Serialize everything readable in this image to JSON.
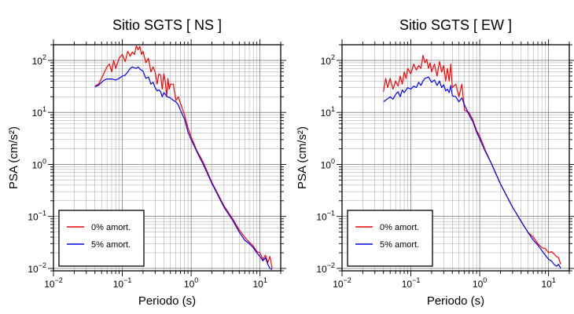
{
  "chart_data": [
    {
      "type": "line",
      "title": "Sitio SGTS [ NS ]",
      "xlabel": "Periodo (s)",
      "ylabel": "PSA (cm/s²)",
      "xscale": "log",
      "yscale": "log",
      "xlim": [
        0.01,
        20
      ],
      "ylim": [
        0.009,
        200
      ],
      "xtick_labels": [
        {
          "value": 0.01,
          "base": "10",
          "exp": "−2"
        },
        {
          "value": 0.1,
          "base": "10",
          "exp": "−1"
        },
        {
          "value": 1,
          "base": "10",
          "exp": "0"
        },
        {
          "value": 10,
          "base": "10",
          "exp": "1"
        }
      ],
      "ytick_labels": [
        {
          "value": 0.01,
          "base": "10",
          "exp": "−2"
        },
        {
          "value": 0.1,
          "base": "10",
          "exp": "−1"
        },
        {
          "value": 1,
          "base": "10",
          "exp": "0"
        },
        {
          "value": 10,
          "base": "10",
          "exp": "1"
        },
        {
          "value": 100,
          "base": "10",
          "exp": "2"
        }
      ],
      "grid": true,
      "legend": "bottom-left",
      "series": [
        {
          "name": "0% amort.",
          "color": "#ff0000",
          "x": [
            0.04,
            0.045,
            0.05,
            0.055,
            0.06,
            0.065,
            0.07,
            0.075,
            0.08,
            0.09,
            0.1,
            0.11,
            0.12,
            0.13,
            0.14,
            0.15,
            0.16,
            0.17,
            0.18,
            0.19,
            0.2,
            0.22,
            0.24,
            0.26,
            0.28,
            0.3,
            0.32,
            0.34,
            0.36,
            0.38,
            0.4,
            0.42,
            0.44,
            0.46,
            0.48,
            0.5,
            0.55,
            0.6,
            0.65,
            0.7,
            0.8,
            0.9,
            1.0,
            1.2,
            1.5,
            2,
            3,
            4,
            5,
            6,
            7,
            8,
            9,
            10,
            11,
            12,
            13,
            14,
            15
          ],
          "y": [
            32,
            35,
            45,
            60,
            75,
            85,
            60,
            100,
            70,
            110,
            130,
            95,
            150,
            120,
            145,
            130,
            190,
            160,
            185,
            130,
            150,
            90,
            110,
            60,
            75,
            60,
            35,
            55,
            52,
            28,
            55,
            40,
            20,
            45,
            28,
            35,
            35,
            17,
            20,
            15,
            9,
            5,
            3.4,
            1.9,
            1.1,
            0.45,
            0.16,
            0.09,
            0.055,
            0.04,
            0.032,
            0.027,
            0.021,
            0.02,
            0.015,
            0.018,
            0.013,
            0.017,
            0.01
          ]
        },
        {
          "name": "5% amort.",
          "color": "#0000ff",
          "x": [
            0.04,
            0.045,
            0.05,
            0.055,
            0.06,
            0.07,
            0.08,
            0.09,
            0.1,
            0.11,
            0.12,
            0.13,
            0.14,
            0.15,
            0.16,
            0.17,
            0.18,
            0.2,
            0.22,
            0.24,
            0.26,
            0.28,
            0.3,
            0.32,
            0.34,
            0.36,
            0.38,
            0.4,
            0.45,
            0.5,
            0.55,
            0.6,
            0.65,
            0.7,
            0.8,
            0.9,
            1.0,
            1.2,
            1.5,
            2,
            3,
            4,
            5,
            6,
            7,
            8,
            9,
            10,
            11,
            12,
            13,
            14,
            15
          ],
          "y": [
            31,
            33,
            38,
            42,
            44,
            44,
            42,
            45,
            50,
            52,
            60,
            70,
            75,
            72,
            70,
            75,
            68,
            62,
            45,
            48,
            35,
            38,
            30,
            26,
            27,
            25,
            20,
            24,
            20,
            19,
            17,
            16,
            14,
            11,
            7.5,
            4.2,
            3.0,
            1.8,
            1.0,
            0.43,
            0.15,
            0.085,
            0.05,
            0.035,
            0.03,
            0.025,
            0.02,
            0.017,
            0.014,
            0.016,
            0.012,
            0.01,
            0.0095
          ]
        }
      ]
    },
    {
      "type": "line",
      "title": "Sitio SGTS [ EW ]",
      "xlabel": "Periodo (s)",
      "ylabel": "PSA (cm/s²)",
      "xscale": "log",
      "yscale": "log",
      "xlim": [
        0.01,
        20
      ],
      "ylim": [
        0.009,
        200
      ],
      "xtick_labels": [
        {
          "value": 0.01,
          "base": "10",
          "exp": "−2"
        },
        {
          "value": 0.1,
          "base": "10",
          "exp": "−1"
        },
        {
          "value": 1,
          "base": "10",
          "exp": "0"
        },
        {
          "value": 10,
          "base": "10",
          "exp": "1"
        }
      ],
      "ytick_labels": [
        {
          "value": 0.01,
          "base": "10",
          "exp": "−2"
        },
        {
          "value": 0.1,
          "base": "10",
          "exp": "−1"
        },
        {
          "value": 1,
          "base": "10",
          "exp": "0"
        },
        {
          "value": 10,
          "base": "10",
          "exp": "1"
        },
        {
          "value": 100,
          "base": "10",
          "exp": "2"
        }
      ],
      "grid": true,
      "legend": "bottom-left",
      "series": [
        {
          "name": "0% amort.",
          "color": "#ff0000",
          "x": [
            0.04,
            0.043,
            0.046,
            0.05,
            0.055,
            0.06,
            0.065,
            0.07,
            0.075,
            0.08,
            0.085,
            0.09,
            0.1,
            0.11,
            0.12,
            0.13,
            0.14,
            0.15,
            0.16,
            0.17,
            0.18,
            0.19,
            0.2,
            0.22,
            0.24,
            0.26,
            0.28,
            0.3,
            0.32,
            0.34,
            0.36,
            0.38,
            0.4,
            0.45,
            0.5,
            0.55,
            0.6,
            0.7,
            0.8,
            0.9,
            1.0,
            1.2,
            1.5,
            2,
            3,
            4,
            5,
            6,
            7,
            8,
            9,
            10,
            11,
            12,
            13,
            14,
            15
          ],
          "y": [
            25,
            45,
            30,
            45,
            28,
            40,
            32,
            50,
            35,
            60,
            45,
            70,
            55,
            85,
            65,
            80,
            70,
            125,
            90,
            105,
            70,
            90,
            60,
            85,
            50,
            95,
            60,
            80,
            40,
            70,
            40,
            85,
            30,
            35,
            20,
            35,
            11,
            10,
            7,
            4.5,
            3.5,
            1.9,
            1.0,
            0.42,
            0.15,
            0.08,
            0.05,
            0.04,
            0.03,
            0.025,
            0.024,
            0.02,
            0.021,
            0.019,
            0.017,
            0.016,
            0.012
          ]
        },
        {
          "name": "5% amort.",
          "color": "#0000ff",
          "x": [
            0.04,
            0.045,
            0.05,
            0.055,
            0.06,
            0.065,
            0.07,
            0.075,
            0.08,
            0.09,
            0.1,
            0.11,
            0.12,
            0.13,
            0.14,
            0.15,
            0.16,
            0.18,
            0.2,
            0.22,
            0.24,
            0.26,
            0.28,
            0.3,
            0.32,
            0.34,
            0.36,
            0.38,
            0.4,
            0.45,
            0.5,
            0.55,
            0.6,
            0.7,
            0.8,
            0.9,
            1.0,
            1.2,
            1.5,
            2,
            3,
            4,
            5,
            6,
            7,
            8,
            9,
            10,
            11,
            12,
            13,
            14,
            15
          ],
          "y": [
            16,
            18,
            20,
            18,
            22,
            25,
            20,
            27,
            24,
            30,
            28,
            32,
            30,
            38,
            33,
            40,
            45,
            48,
            38,
            42,
            33,
            40,
            30,
            34,
            26,
            28,
            24,
            33,
            21,
            20,
            16,
            19,
            14,
            9,
            6.5,
            4.2,
            3.1,
            1.8,
            1.0,
            0.42,
            0.15,
            0.08,
            0.05,
            0.035,
            0.028,
            0.022,
            0.018,
            0.015,
            0.014,
            0.012,
            0.011,
            0.012,
            0.01
          ]
        }
      ]
    }
  ]
}
